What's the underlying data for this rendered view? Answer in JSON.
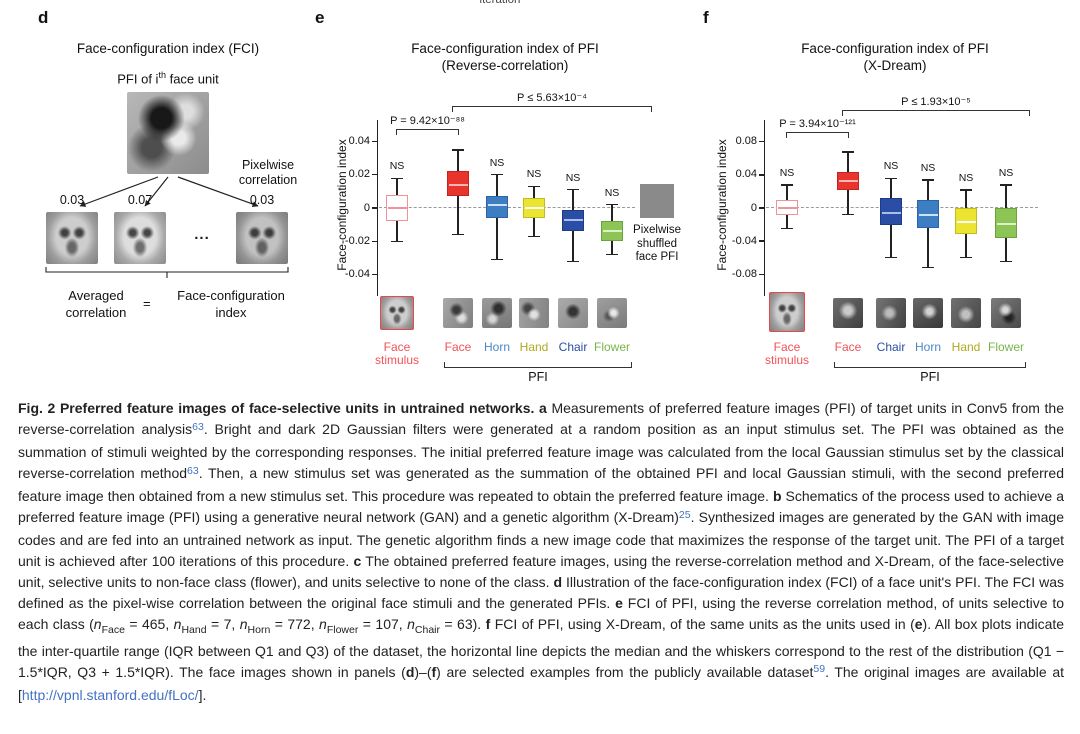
{
  "meta": {
    "top_partial_text": "iteration"
  },
  "panel_d": {
    "letter": "d",
    "title": "Face-configuration index (FCI)",
    "pfi_label_prefix": "PFI of i",
    "pfi_label_sup": "th",
    "pfi_label_suffix": " face unit",
    "pixelwise_line1": "Pixelwise",
    "pixelwise_line2": "correlation",
    "correlations": [
      "0.03",
      "0.07",
      "0.03"
    ],
    "ellipsis": "...",
    "averaged_line1": "Averaged",
    "averaged_line2": "correlation",
    "equals": "=",
    "fci_line1": "Face-configuration",
    "fci_line2": "index"
  },
  "panel_e": {
    "letter": "e"
  },
  "panel_f": {
    "letter": "f"
  },
  "chart_data": [
    {
      "type": "box",
      "panel": "e",
      "title_line1": "Face-configuration index of PFI",
      "title_line2": "(Reverse-correlation)",
      "ylabel": "Face-configuration index",
      "xlabel": "PFI",
      "ns_label": "NS",
      "ylim": [
        -0.053,
        0.053
      ],
      "yticks": [
        0.04,
        0.02,
        0,
        -0.02,
        -0.04
      ],
      "ytick_labels": [
        "0.04",
        "0.02",
        "0",
        "-0.02",
        "-0.04"
      ],
      "zero_line_dashed": true,
      "legend": {
        "line1": "Pixelwise",
        "line2": "shuffled",
        "line3": "face PFI",
        "color": "#8a8a8a"
      },
      "significance": [
        {
          "text": "P ≤ 5.63×10⁻⁴"
        },
        {
          "text": "P = 9.42×10⁻⁸⁸"
        }
      ],
      "boxes": [
        {
          "label": "Face stimulus",
          "label_color": "#ef5257",
          "fill": "#ffffff",
          "edge": "#f09297",
          "median_color": "#f09297",
          "ns": true,
          "thumb": "face",
          "thumb_border": "#e8474b",
          "thumb_w": 34,
          "thumb_h": 34,
          "thumb_y": 296,
          "stats": {
            "lo": -0.02,
            "q1": -0.008,
            "median": 0.0,
            "q3": 0.008,
            "hi": 0.018
          }
        },
        {
          "label": "Face",
          "label_color": "#ef5257",
          "fill": "#e8342c",
          "edge": "#c0251f",
          "median_color": "#f6b6b2",
          "ns": false,
          "thumb": "blob-a",
          "stats": {
            "lo": -0.016,
            "q1": 0.007,
            "median": 0.014,
            "q3": 0.022,
            "hi": 0.035
          }
        },
        {
          "label": "Horn",
          "label_color": "#4a86c8",
          "fill": "#3d7dc2",
          "edge": "#2c63a5",
          "median_color": "#cfe2f5",
          "ns": true,
          "thumb": "blob-b",
          "stats": {
            "lo": -0.031,
            "q1": -0.006,
            "median": 0.002,
            "q3": 0.007,
            "hi": 0.02
          }
        },
        {
          "label": "Hand",
          "label_color": "#b0a922",
          "fill": "#ebe531",
          "edge": "#c2bc1e",
          "median_color": "#ffffff",
          "ns": true,
          "thumb": "blob-c",
          "stats": {
            "lo": -0.017,
            "q1": -0.006,
            "median": 0.0,
            "q3": 0.006,
            "hi": 0.013
          }
        },
        {
          "label": "Chair",
          "label_color": "#2a4da5",
          "fill": "#2a4da5",
          "edge": "#1e3b86",
          "median_color": "#a9bfe9",
          "ns": true,
          "thumb": "blob-d",
          "stats": {
            "lo": -0.032,
            "q1": -0.014,
            "median": -0.007,
            "q3": -0.001,
            "hi": 0.011
          }
        },
        {
          "label": "Flower",
          "label_color": "#79b44a",
          "fill": "#8cc455",
          "edge": "#6ea23c",
          "median_color": "#def0ca",
          "ns": true,
          "thumb": "blob-e",
          "stats": {
            "lo": -0.028,
            "q1": -0.02,
            "median": -0.014,
            "q3": -0.008,
            "hi": 0.002
          }
        }
      ]
    },
    {
      "type": "box",
      "panel": "f",
      "title_line1": "Face-configuration index of PFI",
      "title_line2": "(X-Dream)",
      "ylabel": "Face-configuration index",
      "xlabel": "PFI",
      "ns_label": "NS",
      "ylim": [
        -0.107,
        0.107
      ],
      "yticks": [
        0.08,
        0.04,
        0,
        -0.04,
        -0.08
      ],
      "ytick_labels": [
        "0.08",
        "0.04",
        "0",
        "-0.04",
        "-0.08"
      ],
      "zero_line_dashed": true,
      "significance": [
        {
          "text": "P ≤ 1.93×10⁻⁵"
        },
        {
          "text": "P = 3.94×10⁻¹²¹"
        }
      ],
      "boxes": [
        {
          "label": "Face stimulus",
          "label_color": "#ef5257",
          "fill": "#ffffff",
          "edge": "#f09297",
          "median_color": "#f09297",
          "ns": true,
          "thumb": "face",
          "thumb_border": "#e8474b",
          "thumb_w": 36,
          "thumb_h": 40,
          "thumb_y": 292,
          "stats": {
            "lo": -0.025,
            "q1": -0.008,
            "median": 0.0,
            "q3": 0.01,
            "hi": 0.028
          }
        },
        {
          "label": "Face",
          "label_color": "#ef5257",
          "fill": "#e8342c",
          "edge": "#c0251f",
          "median_color": "#f6b6b2",
          "ns": false,
          "thumb": "dark-a",
          "stats": {
            "lo": -0.008,
            "q1": 0.022,
            "median": 0.033,
            "q3": 0.044,
            "hi": 0.068
          }
        },
        {
          "label": "Chair",
          "label_color": "#2a4da5",
          "fill": "#2a4da5",
          "edge": "#1e3b86",
          "median_color": "#a9bfe9",
          "ns": true,
          "thumb": "dark-b",
          "stats": {
            "lo": -0.06,
            "q1": -0.02,
            "median": -0.006,
            "q3": 0.012,
            "hi": 0.036
          }
        },
        {
          "label": "Horn",
          "label_color": "#4a86c8",
          "fill": "#3d7dc2",
          "edge": "#2c63a5",
          "median_color": "#cfe2f5",
          "ns": true,
          "thumb": "dark-c",
          "stats": {
            "lo": -0.072,
            "q1": -0.024,
            "median": -0.008,
            "q3": 0.01,
            "hi": 0.034
          }
        },
        {
          "label": "Hand",
          "label_color": "#b0a922",
          "fill": "#ebe531",
          "edge": "#c2bc1e",
          "median_color": "#ffffff",
          "ns": true,
          "thumb": "dark-d",
          "stats": {
            "lo": -0.06,
            "q1": -0.032,
            "median": -0.017,
            "q3": 0.0,
            "hi": 0.022
          }
        },
        {
          "label": "Flower",
          "label_color": "#79b44a",
          "fill": "#8cc455",
          "edge": "#6ea23c",
          "median_color": "#def0ca",
          "ns": true,
          "thumb": "dark-e",
          "stats": {
            "lo": -0.065,
            "q1": -0.036,
            "median": -0.019,
            "q3": 0.0,
            "hi": 0.028
          }
        }
      ]
    }
  ],
  "caption": {
    "segments": [
      {
        "s": "b",
        "t": "Fig. 2 Preferred feature images of face-selective units in untrained networks. a"
      },
      {
        "s": "n",
        "t": " Measurements of preferred feature images (PFI) of target units in Conv5 from the reverse-correlation analysis"
      },
      {
        "s": "r",
        "t": "63"
      },
      {
        "s": "n",
        "t": ". Bright and dark 2D Gaussian filters were generated at a random position as an input stimulus set. The PFI was obtained as the summation of stimuli weighted by the corresponding responses. The initial preferred feature image was calculated from the local Gaussian stimulus set by the classical reverse-correlation method"
      },
      {
        "s": "r",
        "t": "63"
      },
      {
        "s": "n",
        "t": ". Then, a new stimulus set was generated as the summation of the obtained PFI and local Gaussian stimuli, with the second preferred feature image then obtained from a new stimulus set. This procedure was repeated to obtain the preferred feature image. "
      },
      {
        "s": "b",
        "t": "b"
      },
      {
        "s": "n",
        "t": " Schematics of the process used to achieve a preferred feature image (PFI) using a generative neural network (GAN) and a genetic algorithm (X-Dream)"
      },
      {
        "s": "r",
        "t": "25"
      },
      {
        "s": "n",
        "t": ". Synthesized images are generated by the GAN with image codes and are fed into an untrained network as input. The genetic algorithm finds a new image code that maximizes the response of the target unit. The PFI of a target unit is achieved after 100 iterations of this procedure. "
      },
      {
        "s": "b",
        "t": "c"
      },
      {
        "s": "n",
        "t": " The obtained preferred feature images, using the reverse-correlation method and X-Dream, of the face-selective unit, selective units to non-face class (flower), and units selective to none of the class. "
      },
      {
        "s": "b",
        "t": "d"
      },
      {
        "s": "n",
        "t": " Illustration of the face-configuration index (FCI) of a face unit's PFI. The FCI was defined as the pixel-wise correlation between the original face stimuli and the generated PFIs. "
      },
      {
        "s": "b",
        "t": "e"
      },
      {
        "s": "n",
        "t": " FCI of PFI, using the reverse correlation method, of units selective to each class ("
      },
      {
        "s": "i",
        "t": "n"
      },
      {
        "s": "sub",
        "t": "Face"
      },
      {
        "s": "n",
        "t": " = 465, "
      },
      {
        "s": "i",
        "t": "n"
      },
      {
        "s": "sub",
        "t": "Hand"
      },
      {
        "s": "n",
        "t": " = 7, "
      },
      {
        "s": "i",
        "t": "n"
      },
      {
        "s": "sub",
        "t": "Horn"
      },
      {
        "s": "n",
        "t": " = 772, "
      },
      {
        "s": "i",
        "t": "n"
      },
      {
        "s": "sub",
        "t": "Flower"
      },
      {
        "s": "n",
        "t": " = 107, "
      },
      {
        "s": "i",
        "t": "n"
      },
      {
        "s": "sub",
        "t": "Chair"
      },
      {
        "s": "n",
        "t": " = 63). "
      },
      {
        "s": "b",
        "t": "f"
      },
      {
        "s": "n",
        "t": " FCI of PFI, using X-Dream, of the same units as the units used in ("
      },
      {
        "s": "b",
        "t": "e"
      },
      {
        "s": "n",
        "t": "). All box plots indicate the inter-quartile range (IQR between Q1 and Q3) of the dataset, the horizontal line depicts the median and the whiskers correspond to the rest of the distribution (Q1 − 1.5*IQR, Q3 + 1.5*IQR). The face images shown in panels ("
      },
      {
        "s": "b",
        "t": "d"
      },
      {
        "s": "n",
        "t": ")–("
      },
      {
        "s": "b",
        "t": "f"
      },
      {
        "s": "n",
        "t": ") are selected examples from the publicly available dataset"
      },
      {
        "s": "r",
        "t": "59"
      },
      {
        "s": "n",
        "t": ". The original images are available at ["
      },
      {
        "s": "l",
        "t": "http://vpnl.stanford.edu/fLoc/"
      },
      {
        "s": "n",
        "t": "]."
      }
    ]
  }
}
